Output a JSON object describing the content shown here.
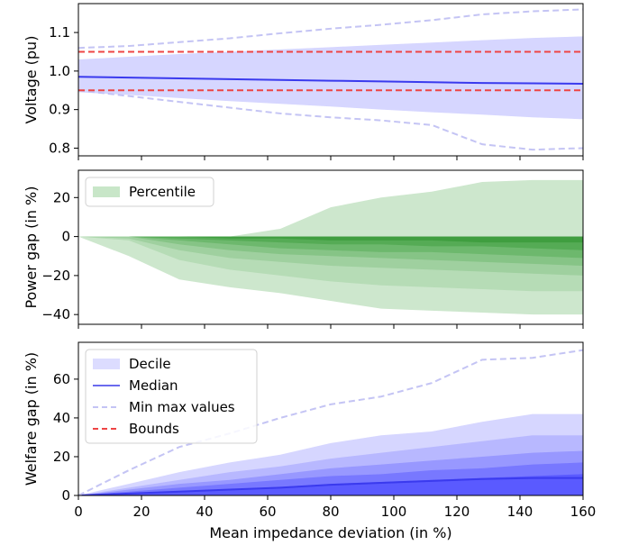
{
  "chart_data": [
    {
      "type": "area",
      "panel": "voltage",
      "ylabel": "Voltage (pu)",
      "xlabel": "",
      "xlim": [
        0,
        160
      ],
      "ylim": [
        0.78,
        1.175
      ],
      "yticks": [
        "0.8",
        "0.9",
        "1.0",
        "1.1"
      ],
      "ytick_values": [
        0.8,
        0.9,
        1.0,
        1.1
      ],
      "xticks": [],
      "grid": false,
      "x": [
        0,
        16,
        32,
        48,
        64,
        80,
        96,
        112,
        128,
        144,
        160
      ],
      "bands": [
        {
          "lower": [
            0.98,
            0.978,
            0.976,
            0.974,
            0.972,
            0.97,
            0.968,
            0.966,
            0.964,
            0.962,
            0.96
          ],
          "upper": [
            0.99,
            0.989,
            0.988,
            0.987,
            0.986,
            0.985,
            0.984,
            0.983,
            0.982,
            0.981,
            0.98
          ]
        },
        {
          "lower": [
            0.97,
            0.967,
            0.964,
            0.96,
            0.957,
            0.954,
            0.951,
            0.948,
            0.946,
            0.944,
            0.942
          ],
          "upper": [
            1.0,
            1.0,
            1.0,
            1.0,
            1.0,
            0.999,
            0.998,
            0.997,
            0.996,
            0.995,
            0.995
          ]
        },
        {
          "lower": [
            0.96,
            0.955,
            0.95,
            0.945,
            0.94,
            0.935,
            0.93,
            0.925,
            0.92,
            0.915,
            0.912
          ],
          "upper": [
            1.01,
            1.012,
            1.014,
            1.016,
            1.017,
            1.018,
            1.019,
            1.02,
            1.021,
            1.022,
            1.022
          ]
        },
        {
          "lower": [
            0.95,
            0.944,
            0.937,
            0.93,
            0.924,
            0.918,
            0.912,
            0.906,
            0.9,
            0.894,
            0.89
          ],
          "upper": [
            1.02,
            1.025,
            1.03,
            1.034,
            1.038,
            1.041,
            1.044,
            1.046,
            1.048,
            1.05,
            1.052
          ]
        },
        {
          "lower": [
            0.945,
            0.938,
            0.93,
            0.922,
            0.915,
            0.908,
            0.9,
            0.893,
            0.887,
            0.88,
            0.875
          ],
          "upper": [
            1.03,
            1.037,
            1.044,
            1.05,
            1.056,
            1.062,
            1.068,
            1.074,
            1.08,
            1.086,
            1.09
          ]
        }
      ],
      "band_colors": [
        "#5a5aff",
        "#7878ff",
        "#9898ff",
        "#b8b8ff",
        "#d6d6ff"
      ],
      "median": {
        "y": [
          0.985,
          0.983,
          0.981,
          0.979,
          0.977,
          0.975,
          0.973,
          0.971,
          0.969,
          0.968,
          0.967
        ],
        "color": "#3a3aee"
      },
      "min_max": {
        "min": [
          0.95,
          0.935,
          0.92,
          0.905,
          0.89,
          0.88,
          0.872,
          0.86,
          0.81,
          0.796,
          0.8
        ],
        "max": [
          1.06,
          1.065,
          1.075,
          1.085,
          1.098,
          1.11,
          1.12,
          1.132,
          1.147,
          1.155,
          1.16
        ],
        "color": "#c4c4f4"
      },
      "bounds": {
        "values": [
          0.95,
          1.05
        ],
        "color": "#ee4444"
      }
    },
    {
      "type": "area",
      "panel": "power",
      "ylabel": "Power gap (in %)",
      "xlabel": "",
      "xlim": [
        0,
        160
      ],
      "ylim": [
        -45,
        34
      ],
      "yticks": [
        "−40",
        "−20",
        "0",
        "20"
      ],
      "ytick_values": [
        -40,
        -20,
        0,
        20
      ],
      "xticks": [],
      "grid": false,
      "legend": {
        "location": "upper-left",
        "entries": [
          {
            "label": "Percentile",
            "color": "#c8e6c8"
          }
        ]
      },
      "x": [
        0,
        16,
        32,
        48,
        64,
        80,
        96,
        112,
        128,
        144,
        160
      ],
      "bands": [
        {
          "lower": [
            0,
            -10,
            -22,
            -26,
            -29,
            -33,
            -37,
            -38,
            -39,
            -40,
            -40
          ],
          "upper": [
            0,
            0,
            0,
            0,
            4,
            15,
            20,
            23,
            28,
            29,
            29
          ]
        },
        {
          "lower": [
            0,
            -2,
            -12,
            -17,
            -20,
            -23,
            -25,
            -26,
            -27,
            -28,
            -28
          ],
          "upper": [
            0,
            0,
            0,
            0,
            0,
            0,
            0,
            0,
            0,
            0,
            0
          ]
        },
        {
          "lower": [
            0,
            -1,
            -7,
            -11,
            -13,
            -15,
            -16,
            -17,
            -18,
            -19,
            -20
          ],
          "upper": [
            0,
            0,
            0,
            0,
            0,
            0,
            0,
            0,
            0,
            0,
            0
          ]
        },
        {
          "lower": [
            0,
            0,
            -4,
            -7,
            -9,
            -10,
            -11,
            -12,
            -13,
            -14,
            -15
          ],
          "upper": [
            0,
            0,
            0,
            0,
            0,
            0,
            0,
            0,
            0,
            0,
            0
          ]
        },
        {
          "lower": [
            0,
            0,
            -2,
            -4,
            -6,
            -7,
            -8,
            -8,
            -9,
            -10,
            -11
          ],
          "upper": [
            0,
            0,
            0,
            0,
            0,
            0,
            0,
            0,
            0,
            0,
            0
          ]
        },
        {
          "lower": [
            0,
            0,
            -1,
            -2,
            -3,
            -4,
            -4,
            -5,
            -5,
            -6,
            -7
          ],
          "upper": [
            0,
            0,
            0,
            0,
            0,
            0,
            0,
            0,
            0,
            0,
            0
          ]
        },
        {
          "lower": [
            0,
            0,
            0,
            -1,
            -1,
            -2,
            -2,
            -2,
            -3,
            -3,
            -3
          ],
          "upper": [
            0,
            0,
            0,
            0,
            0,
            0,
            0,
            0,
            0,
            0,
            0
          ]
        }
      ],
      "band_colors": [
        "#cde7cd",
        "#b6dcb6",
        "#9fd09f",
        "#86c486",
        "#6db86d",
        "#55ab55",
        "#3f9e3f"
      ]
    },
    {
      "type": "area",
      "panel": "welfare",
      "ylabel": "Welfare gap (in %)",
      "xlabel": "Mean impedance deviation (in %)",
      "xlim": [
        0,
        160
      ],
      "ylim": [
        0,
        79
      ],
      "yticks": [
        "0",
        "20",
        "40",
        "60"
      ],
      "ytick_values": [
        0,
        20,
        40,
        60
      ],
      "xticks": [
        "0",
        "20",
        "40",
        "60",
        "80",
        "100",
        "120",
        "140",
        "160"
      ],
      "xtick_values": [
        0,
        20,
        40,
        60,
        80,
        100,
        120,
        140,
        160
      ],
      "grid": false,
      "legend": {
        "location": "upper-left",
        "entries": [
          {
            "label": "Decile",
            "kind": "patch",
            "color": "#dcdcff"
          },
          {
            "label": "Median",
            "kind": "line",
            "color": "#6a6aee"
          },
          {
            "label": "Min max values",
            "kind": "dashed",
            "color": "#c4c4f4"
          },
          {
            "label": "Bounds",
            "kind": "dashed",
            "color": "#ee4444"
          }
        ]
      },
      "x": [
        0,
        16,
        32,
        48,
        64,
        80,
        96,
        112,
        128,
        144,
        160
      ],
      "bands": [
        {
          "lower": [
            0,
            0,
            0,
            0,
            0,
            0,
            0,
            0,
            0,
            0,
            0
          ],
          "upper": [
            0,
            6,
            12,
            17,
            21,
            27,
            31,
            33,
            38,
            42,
            42
          ]
        },
        {
          "lower": [
            0,
            0,
            0,
            0,
            0,
            0,
            0,
            0,
            0,
            0,
            0
          ],
          "upper": [
            0,
            4,
            8,
            12,
            15,
            19,
            22,
            25,
            28,
            31,
            31
          ]
        },
        {
          "lower": [
            0,
            0,
            0,
            0,
            0,
            0,
            0,
            0,
            0,
            0,
            0
          ],
          "upper": [
            0,
            3,
            6,
            8,
            11,
            14,
            16,
            18,
            20,
            22,
            23
          ]
        },
        {
          "lower": [
            0,
            0,
            0,
            0,
            0,
            0,
            0,
            0,
            0,
            0,
            0
          ],
          "upper": [
            0,
            2,
            4,
            6,
            8,
            10,
            11,
            13,
            14,
            16,
            17
          ]
        },
        {
          "lower": [
            0,
            0,
            0,
            0,
            0,
            0,
            0,
            0,
            0,
            0,
            0
          ],
          "upper": [
            0,
            1,
            2,
            3,
            4,
            6,
            7,
            8,
            9,
            10,
            11
          ]
        }
      ],
      "band_colors": [
        "#d6d6ff",
        "#b8b8ff",
        "#9898ff",
        "#7878ff",
        "#5a5aff"
      ],
      "median": {
        "y": [
          0,
          1,
          2,
          3,
          4,
          5.5,
          6.5,
          7.5,
          8.5,
          9,
          9
        ],
        "color": "#3a3aee"
      },
      "min_max": {
        "max": [
          0,
          13,
          25,
          32,
          40,
          47,
          51,
          58,
          70,
          71,
          75
        ],
        "color": "#c4c4f4"
      }
    }
  ]
}
